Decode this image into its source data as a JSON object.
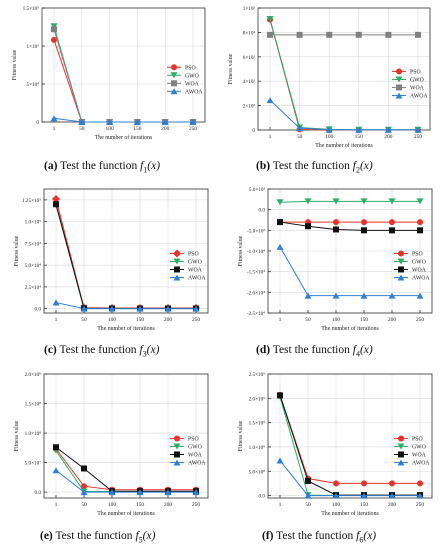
{
  "chart_data": [
    {
      "type": "line",
      "caption": {
        "letter": "(a)",
        "text": "Test the function",
        "fn": "f",
        "sub": "1",
        "arg": "(x)"
      },
      "xlabel": "The number of iterations",
      "ylabel": "Fitness value",
      "categories": [
        "1",
        "50",
        "100",
        "150",
        "200",
        "250"
      ],
      "ylim": [
        0,
        150000
      ],
      "yticks": [
        0,
        50000,
        100000,
        150000
      ],
      "ytick_labels": [
        "0",
        "5×10⁴",
        "1×10⁵",
        "1.5×10⁵"
      ],
      "legend_position": "center-right",
      "grid": true,
      "series": [
        {
          "name": "PSO",
          "color": "#e8332c",
          "marker": "circle",
          "values": [
            108000,
            0,
            0,
            0,
            0,
            0
          ]
        },
        {
          "name": "GWO",
          "color": "#2bae66",
          "marker": "triangle-down",
          "values": [
            126000,
            0,
            0,
            0,
            0,
            0
          ]
        },
        {
          "name": "WOA",
          "color": "#808080",
          "marker": "square",
          "values": [
            122000,
            0,
            0,
            0,
            0,
            0
          ]
        },
        {
          "name": "AWOA",
          "color": "#2f7fd6",
          "marker": "triangle-up",
          "values": [
            5000,
            0,
            0,
            0,
            0,
            0
          ]
        }
      ]
    },
    {
      "type": "line",
      "caption": {
        "letter": "(b)",
        "text": "Test the function",
        "fn": "f",
        "sub": "2",
        "arg": "(x)"
      },
      "xlabel": "The number of iterations",
      "ylabel": "Fitness value",
      "categories": [
        "1",
        "50",
        "100",
        "150",
        "200",
        "250"
      ],
      "ylim": [
        0,
        1000
      ],
      "yticks": [
        0,
        200,
        400,
        600,
        800,
        1000
      ],
      "ytick_labels": [
        "0",
        "2×10²",
        "4×10²",
        "6×10²",
        "8×10²",
        "1×10³"
      ],
      "legend_position": "center-right",
      "grid": true,
      "series": [
        {
          "name": "PSO",
          "color": "#e8332c",
          "marker": "circle",
          "values": [
            905,
            5,
            0,
            0,
            0,
            0
          ]
        },
        {
          "name": "GWO",
          "color": "#2bae66",
          "marker": "triangle-down",
          "values": [
            910,
            20,
            5,
            2,
            2,
            2
          ]
        },
        {
          "name": "WOA",
          "color": "#808080",
          "marker": "square",
          "values": [
            780,
            780,
            780,
            780,
            780,
            780
          ]
        },
        {
          "name": "AWOA",
          "color": "#2f7fd6",
          "marker": "triangle-up",
          "values": [
            245,
            15,
            2,
            2,
            2,
            2
          ]
        }
      ]
    },
    {
      "type": "line",
      "caption": {
        "letter": "(c)",
        "text": "Test the function",
        "fn": "f",
        "sub": "3",
        "arg": "(x)"
      },
      "xlabel": "The number of iterations",
      "ylabel": "Fitness value",
      "categories": [
        "1",
        "50",
        "100",
        "150",
        "200",
        "250"
      ],
      "ylim": [
        -5000,
        137500
      ],
      "yticks": [
        0,
        25000,
        50000,
        75000,
        100000,
        125000
      ],
      "ytick_labels": [
        "0.0",
        "2.5×10⁴",
        "5.0×10⁴",
        "7.5×10⁴",
        "1.0×10⁵",
        "1.25×10⁵"
      ],
      "legend_position": "center-right",
      "grid": true,
      "series": [
        {
          "name": "PSO",
          "color": "#e8332c",
          "marker": "diamond",
          "values": [
            126000,
            1000,
            800,
            800,
            800,
            800
          ]
        },
        {
          "name": "GWO",
          "color": "#2bae66",
          "marker": "triangle-down",
          "values": [
            119000,
            200,
            0,
            0,
            0,
            0
          ]
        },
        {
          "name": "WOA",
          "color": "#111111",
          "marker": "square",
          "values": [
            120000,
            500,
            200,
            200,
            200,
            200
          ]
        },
        {
          "name": "AWOA",
          "color": "#2f7fd6",
          "marker": "triangle-up",
          "values": [
            7000,
            0,
            0,
            0,
            0,
            0
          ]
        }
      ]
    },
    {
      "type": "line",
      "caption": {
        "letter": "(d)",
        "text": "Test the function",
        "fn": "f",
        "sub": "4",
        "arg": "(x)"
      },
      "xlabel": "The number of iterations",
      "ylabel": "Fitness value",
      "categories": [
        "1",
        "50",
        "100",
        "150",
        "200",
        "250"
      ],
      "ylim": [
        -25000,
        5000
      ],
      "yticks": [
        -25000,
        -20000,
        -15000,
        -10000,
        -5000,
        0,
        5000
      ],
      "ytick_labels": [
        "-2.5×10⁴",
        "-2.0×10⁴",
        "-1.5×10⁴",
        "-1.0×10⁴",
        "-5.0×10³",
        "0.0",
        "5.0×10³"
      ],
      "legend_position": "center-right",
      "grid": true,
      "series": [
        {
          "name": "PSO",
          "color": "#e8332c",
          "marker": "circle",
          "values": [
            -3000,
            -3000,
            -3000,
            -3000,
            -3000,
            -3000
          ]
        },
        {
          "name": "GWO",
          "color": "#2bae66",
          "marker": "triangle-down",
          "values": [
            1800,
            2000,
            2000,
            2000,
            2000,
            2000
          ]
        },
        {
          "name": "WOA",
          "color": "#111111",
          "marker": "square",
          "values": [
            -3000,
            -4000,
            -4800,
            -5000,
            -5000,
            -5000
          ]
        },
        {
          "name": "AWOA",
          "color": "#2f7fd6",
          "marker": "triangle-up",
          "values": [
            -9000,
            -20800,
            -20800,
            -20800,
            -20800,
            -20800
          ]
        }
      ]
    },
    {
      "type": "line",
      "caption": {
        "letter": "(e)",
        "text": "Test the function",
        "fn": "f",
        "sub": "5",
        "arg": "(x)"
      },
      "xlabel": "The number of iterations",
      "ylabel": "Fitness value",
      "categories": [
        "1",
        "50",
        "100",
        "150",
        "200",
        "250"
      ],
      "ylim": [
        -10000000,
        200000000
      ],
      "yticks": [
        0,
        50000000,
        100000000,
        150000000,
        200000000
      ],
      "ytick_labels": [
        "0.0",
        "5.0×10⁷",
        "1.0×10⁸",
        "1.5×10⁸",
        "2.0×10⁸"
      ],
      "legend_position": "center-right",
      "grid": true,
      "series": [
        {
          "name": "PSO",
          "color": "#e8332c",
          "marker": "circle",
          "values": [
            73000000,
            10000000,
            4000000,
            4000000,
            4000000,
            4000000
          ]
        },
        {
          "name": "GWO",
          "color": "#2bae66",
          "marker": "triangle-down",
          "values": [
            70000000,
            1000000,
            1000000,
            1000000,
            1000000,
            1000000
          ]
        },
        {
          "name": "WOA",
          "color": "#111111",
          "marker": "square",
          "values": [
            76000000,
            40000000,
            1500000,
            1500000,
            1500000,
            1500000
          ]
        },
        {
          "name": "AWOA",
          "color": "#2f7fd6",
          "marker": "triangle-up",
          "values": [
            37000000,
            0,
            0,
            0,
            0,
            0
          ]
        }
      ]
    },
    {
      "type": "line",
      "caption": {
        "letter": "(f)",
        "text": "Test the function",
        "fn": "f",
        "sub": "6",
        "arg": "(x)"
      },
      "xlabel": "The number of iterations",
      "ylabel": "Fitness value",
      "categories": [
        "1",
        "50",
        "100",
        "150",
        "200",
        "250"
      ],
      "ylim": [
        -50000000,
        2500000000
      ],
      "yticks": [
        0,
        500000000,
        1000000000,
        1500000000,
        2000000000,
        2500000000
      ],
      "ytick_labels": [
        "0.0",
        "5.0×10⁸",
        "1.0×10⁹",
        "1.5×10⁹",
        "2.0×10⁹",
        "2.5×10⁹"
      ],
      "legend_position": "center-right",
      "grid": true,
      "series": [
        {
          "name": "PSO",
          "color": "#e8332c",
          "marker": "circle",
          "values": [
            2070000000,
            350000000,
            250000000,
            250000000,
            250000000,
            250000000
          ]
        },
        {
          "name": "GWO",
          "color": "#2bae66",
          "marker": "triangle-down",
          "values": [
            2030000000,
            10000000,
            5000000,
            5000000,
            5000000,
            5000000
          ]
        },
        {
          "name": "WOA",
          "color": "#111111",
          "marker": "square",
          "values": [
            2060000000,
            300000000,
            10000000,
            10000000,
            10000000,
            10000000
          ]
        },
        {
          "name": "AWOA",
          "color": "#2f7fd6",
          "marker": "triangle-up",
          "values": [
            720000000,
            0,
            0,
            0,
            0,
            0
          ]
        }
      ]
    }
  ]
}
